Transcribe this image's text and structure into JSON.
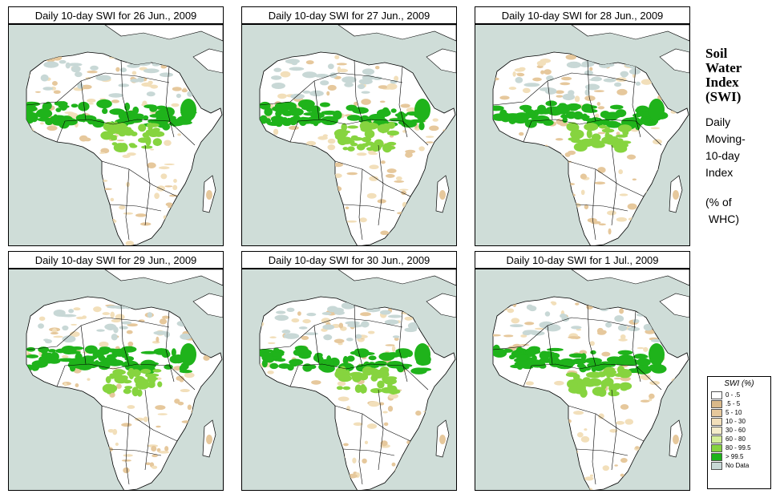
{
  "panels": [
    {
      "title": "Daily 10-day SWI for  26 Jun., 2009",
      "variant": 0
    },
    {
      "title": "Daily 10-day SWI for  27 Jun., 2009",
      "variant": 1
    },
    {
      "title": "Daily 10-day SWI for  28 Jun., 2009",
      "variant": 2
    },
    {
      "title": "Daily 10-day SWI for  29 Jun., 2009",
      "variant": 3
    },
    {
      "title": "Daily 10-day SWI for  30 Jun., 2009",
      "variant": 4
    },
    {
      "title": "Daily 10-day SWI for  1 Jul., 2009",
      "variant": 5
    }
  ],
  "sidebar": {
    "title_lines": [
      "Soil",
      "Water",
      "Index",
      "(SWI)"
    ],
    "subtitle_lines": [
      "Daily",
      "Moving-",
      "10-day",
      "Index"
    ],
    "unit_lines": [
      "(% of",
      " WHC)"
    ]
  },
  "legend": {
    "title": "SWI (%)",
    "items": [
      {
        "label": "0 - .5",
        "color": "#ffffff"
      },
      {
        "label": ".5 - 5",
        "color": "#d9b98a"
      },
      {
        "label": "5 - 10",
        "color": "#e6c89c"
      },
      {
        "label": "10 - 30",
        "color": "#f2dfba"
      },
      {
        "label": "30 - 60",
        "color": "#f5eccb"
      },
      {
        "label": "60 - 80",
        "color": "#d6ef9a"
      },
      {
        "label": "80 - 99.5",
        "color": "#86d43f"
      },
      {
        "label": "> 99.5",
        "color": "#1fb31b"
      },
      {
        "label": "No Data",
        "color": "#c8d8d6"
      }
    ]
  },
  "colors": {
    "ocean": "#cfddd8",
    "land": "#ffffff",
    "nodata": "#c8d8d6",
    "tan": "#e6c89c",
    "green": "#1fb31b",
    "lightgreen": "#86d43f"
  }
}
